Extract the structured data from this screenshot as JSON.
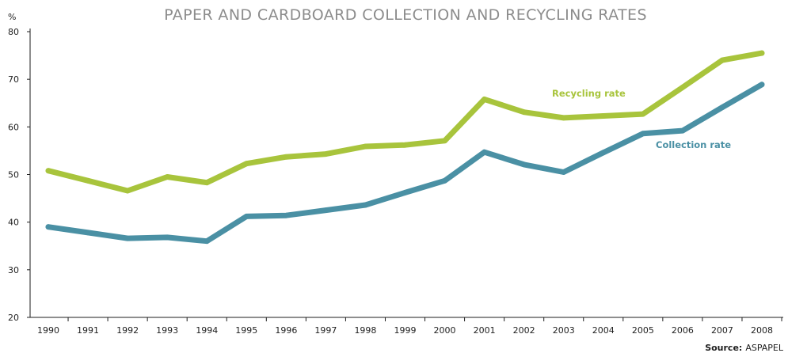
{
  "chart_data": {
    "type": "line",
    "title": "PAPER AND CARDBOARD COLLECTION AND RECYCLING RATES",
    "y_unit": "%",
    "ylim": [
      20,
      80
    ],
    "y_ticks": [
      20,
      30,
      40,
      50,
      60,
      70,
      80
    ],
    "x": [
      "1990",
      "1991",
      "1992",
      "1993",
      "1994",
      "1995",
      "1996",
      "1997",
      "1998",
      "1999",
      "2000",
      "2001",
      "2002",
      "2003",
      "2004",
      "2005",
      "2006",
      "2007",
      "2008"
    ],
    "series": [
      {
        "name": "Recycling rate",
        "color": "#a8c43c",
        "values": [
          50.8,
          48.7,
          46.6,
          49.5,
          48.3,
          52.3,
          53.7,
          54.3,
          55.9,
          56.2,
          57.1,
          65.8,
          63.1,
          61.9,
          62.3,
          62.7,
          68.3,
          74.0,
          75.5
        ]
      },
      {
        "name": "Collection rate",
        "color": "#4a90a4",
        "values": [
          39.0,
          37.8,
          36.6,
          36.8,
          36.0,
          41.2,
          41.4,
          42.5,
          43.6,
          46.2,
          48.7,
          54.7,
          52.1,
          50.5,
          54.6,
          58.6,
          59.2,
          64.1,
          68.9
        ]
      }
    ],
    "grid": false,
    "legend": "inline labels",
    "source_label": "Source:",
    "source": "ASPAPEL"
  }
}
